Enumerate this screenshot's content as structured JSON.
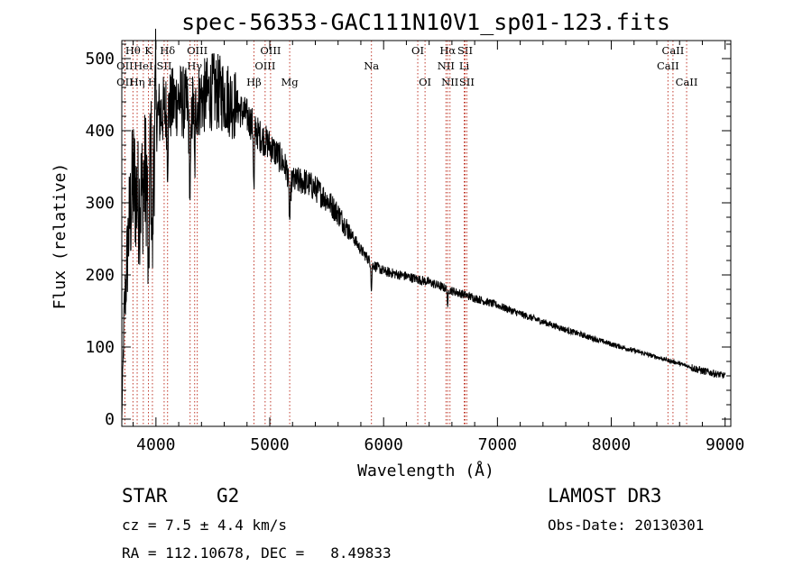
{
  "chart_data": {
    "type": "line",
    "title": "spec-56353-GAC111N10V1_sp01-123.fits",
    "xlabel": "Wavelength (Å)",
    "ylabel": "Flux (relative)",
    "xlim": [
      3700,
      9050
    ],
    "ylim": [
      -10,
      525
    ],
    "xticks": [
      4000,
      5000,
      6000,
      7000,
      8000,
      9000
    ],
    "yticks": [
      0,
      100,
      200,
      300,
      400,
      500
    ],
    "series": [
      {
        "name": "flux",
        "color": "#000000",
        "continuum_points": [
          [
            3700,
            0
          ],
          [
            3720,
            140
          ],
          [
            3760,
            260
          ],
          [
            3800,
            330
          ],
          [
            3850,
            300
          ],
          [
            3900,
            330
          ],
          [
            3950,
            360
          ],
          [
            4000,
            420
          ],
          [
            4100,
            430
          ],
          [
            4200,
            445
          ],
          [
            4300,
            430
          ],
          [
            4400,
            445
          ],
          [
            4500,
            455
          ],
          [
            4600,
            450
          ],
          [
            4700,
            435
          ],
          [
            4800,
            420
          ],
          [
            4900,
            395
          ],
          [
            5000,
            380
          ],
          [
            5100,
            360
          ],
          [
            5200,
            330
          ],
          [
            5300,
            330
          ],
          [
            5400,
            320
          ],
          [
            5500,
            305
          ],
          [
            5600,
            285
          ],
          [
            5700,
            260
          ],
          [
            5800,
            235
          ],
          [
            5900,
            215
          ],
          [
            6000,
            205
          ],
          [
            6200,
            198
          ],
          [
            6400,
            190
          ],
          [
            6600,
            178
          ],
          [
            6800,
            168
          ],
          [
            7000,
            158
          ],
          [
            7200,
            146
          ],
          [
            7400,
            135
          ],
          [
            7600,
            124
          ],
          [
            7800,
            114
          ],
          [
            8000,
            104
          ],
          [
            8200,
            95
          ],
          [
            8400,
            86
          ],
          [
            8600,
            77
          ],
          [
            8800,
            67
          ],
          [
            9000,
            60
          ]
        ],
        "absorption_features": [
          {
            "wavelength": 3934,
            "depth": 170,
            "width": 8
          },
          {
            "wavelength": 3969,
            "depth": 150,
            "width": 8
          },
          {
            "wavelength": 4102,
            "depth": 70,
            "width": 6
          },
          {
            "wavelength": 4300,
            "depth": 110,
            "width": 10
          },
          {
            "wavelength": 4340,
            "depth": 90,
            "width": 6
          },
          {
            "wavelength": 4861,
            "depth": 90,
            "width": 6
          },
          {
            "wavelength": 5175,
            "depth": 60,
            "width": 10
          },
          {
            "wavelength": 5893,
            "depth": 40,
            "width": 5
          },
          {
            "wavelength": 6563,
            "depth": 30,
            "width": 4
          }
        ]
      }
    ],
    "line_markers": [
      {
        "label": "Hθ",
        "wavelength": 3798,
        "row": 0
      },
      {
        "label": "OII",
        "wavelength": 3727,
        "row": 1
      },
      {
        "label": "OII",
        "wavelength": 3727,
        "row": 2
      },
      {
        "label": "HeI",
        "wavelength": 3889,
        "row": 1
      },
      {
        "label": "Hη",
        "wavelength": 3835,
        "row": 2
      },
      {
        "label": "K",
        "wavelength": 3934,
        "row": 0
      },
      {
        "label": "H",
        "wavelength": 3969,
        "row": 2
      },
      {
        "label": "Hδ",
        "wavelength": 4102,
        "row": 0
      },
      {
        "label": "SII",
        "wavelength": 4072,
        "row": 1
      },
      {
        "label": "OIII",
        "wavelength": 4363,
        "row": 0
      },
      {
        "label": "Hγ",
        "wavelength": 4340,
        "row": 1
      },
      {
        "label": "G",
        "wavelength": 4300,
        "row": 2
      },
      {
        "label": "OIII",
        "wavelength": 5007,
        "row": 0
      },
      {
        "label": "OIII",
        "wavelength": 4959,
        "row": 1
      },
      {
        "label": "Hβ",
        "wavelength": 4861,
        "row": 2
      },
      {
        "label": "Mg",
        "wavelength": 5175,
        "row": 2
      },
      {
        "label": "Na",
        "wavelength": 5893,
        "row": 1
      },
      {
        "label": "OI",
        "wavelength": 6300,
        "row": 0
      },
      {
        "label": "OI",
        "wavelength": 6364,
        "row": 2
      },
      {
        "label": "Hα",
        "wavelength": 6563,
        "row": 0
      },
      {
        "label": "SII",
        "wavelength": 6716,
        "row": 0
      },
      {
        "label": "NII",
        "wavelength": 6548,
        "row": 1
      },
      {
        "label": "Li",
        "wavelength": 6708,
        "row": 1
      },
      {
        "label": "NII",
        "wavelength": 6583,
        "row": 2
      },
      {
        "label": "SII",
        "wavelength": 6731,
        "row": 2
      },
      {
        "label": "CaII",
        "wavelength": 8542,
        "row": 0
      },
      {
        "label": "CaII",
        "wavelength": 8498,
        "row": 1
      },
      {
        "label": "CaII",
        "wavelength": 8662,
        "row": 2
      }
    ],
    "marker_color": "#c0392b"
  },
  "info": {
    "object_class": "STAR",
    "subclass": "G2",
    "redshift": "cz = 7.5 ± 4.4 km/s",
    "coordinates": "RA = 112.10678, DEC =   8.49833",
    "survey": "LAMOST DR3",
    "obs_date": "Obs-Date: 20130301"
  }
}
